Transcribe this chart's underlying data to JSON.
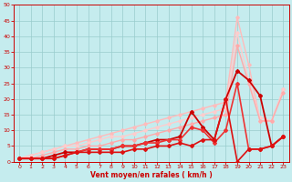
{
  "xlabel": "Vent moyen/en rafales ( km/h )",
  "xlim": [
    0,
    23
  ],
  "ylim": [
    0,
    50
  ],
  "yticks": [
    0,
    5,
    10,
    15,
    20,
    25,
    30,
    35,
    40,
    45,
    50
  ],
  "xticks": [
    0,
    1,
    2,
    3,
    4,
    5,
    6,
    7,
    8,
    9,
    10,
    11,
    12,
    13,
    14,
    15,
    16,
    17,
    18,
    19,
    20,
    21,
    22,
    23
  ],
  "bg_color": "#c5ecee",
  "grid_color": "#99cccc",
  "series": [
    {
      "x": [
        0,
        1,
        2,
        3,
        4,
        5,
        6,
        7,
        8,
        9,
        10,
        11,
        12,
        13,
        14,
        15,
        16,
        17,
        18,
        19,
        20,
        21,
        22,
        23
      ],
      "y": [
        1,
        2,
        3,
        4,
        5,
        6,
        7,
        8,
        9,
        10,
        11,
        12,
        13,
        14,
        15,
        16,
        17,
        18,
        19,
        46,
        31,
        13,
        13,
        23
      ],
      "color": "#ffbbbb",
      "lw": 1.0,
      "marker": "D",
      "ms": 1.8
    },
    {
      "x": [
        0,
        1,
        2,
        3,
        4,
        5,
        6,
        7,
        8,
        9,
        10,
        11,
        12,
        13,
        14,
        15,
        16,
        17,
        18,
        19,
        20,
        21,
        22,
        23
      ],
      "y": [
        1,
        2,
        3,
        4,
        5,
        5,
        6,
        7,
        8,
        8,
        9,
        10,
        11,
        12,
        13,
        14,
        15,
        16,
        17,
        41,
        26,
        14,
        13,
        23
      ],
      "color": "#ffcccc",
      "lw": 1.0,
      "marker": "D",
      "ms": 1.8
    },
    {
      "x": [
        0,
        1,
        2,
        3,
        4,
        5,
        6,
        7,
        8,
        9,
        10,
        11,
        12,
        13,
        14,
        15,
        16,
        17,
        18,
        19,
        20,
        21,
        22,
        23
      ],
      "y": [
        1,
        1,
        2,
        3,
        4,
        4,
        5,
        5,
        6,
        7,
        7,
        8,
        9,
        10,
        11,
        12,
        13,
        14,
        15,
        37,
        25,
        13,
        13,
        22
      ],
      "color": "#ffaaaa",
      "lw": 1.0,
      "marker": "D",
      "ms": 1.8
    },
    {
      "x": [
        0,
        1,
        2,
        3,
        4,
        5,
        6,
        7,
        8,
        9,
        10,
        11,
        12,
        13,
        14,
        15,
        16,
        17,
        18,
        19,
        20,
        21,
        22,
        23
      ],
      "y": [
        1,
        1,
        1,
        2,
        3,
        3,
        4,
        4,
        4,
        5,
        5,
        6,
        7,
        7,
        8,
        16,
        11,
        7,
        20,
        29,
        26,
        21,
        5,
        8
      ],
      "color": "#cc0000",
      "lw": 1.3,
      "marker": "D",
      "ms": 2.0
    },
    {
      "x": [
        0,
        1,
        2,
        3,
        4,
        5,
        6,
        7,
        8,
        9,
        10,
        11,
        12,
        13,
        14,
        15,
        16,
        17,
        18,
        19,
        20,
        21,
        22,
        23
      ],
      "y": [
        1,
        1,
        1,
        1,
        2,
        3,
        4,
        4,
        4,
        5,
        5,
        6,
        6,
        7,
        7,
        11,
        10,
        6,
        10,
        25,
        4,
        4,
        5,
        8
      ],
      "color": "#ee3333",
      "lw": 1.2,
      "marker": "D",
      "ms": 2.0
    },
    {
      "x": [
        0,
        1,
        2,
        3,
        4,
        5,
        6,
        7,
        8,
        9,
        10,
        11,
        12,
        13,
        14,
        15,
        16,
        17,
        18,
        19,
        20,
        21,
        22,
        23
      ],
      "y": [
        1,
        1,
        1,
        1,
        2,
        3,
        3,
        3,
        3,
        3,
        4,
        4,
        5,
        5,
        6,
        5,
        7,
        7,
        20,
        0,
        4,
        4,
        5,
        8
      ],
      "color": "#dd1111",
      "lw": 1.2,
      "marker": "D",
      "ms": 2.0
    }
  ]
}
